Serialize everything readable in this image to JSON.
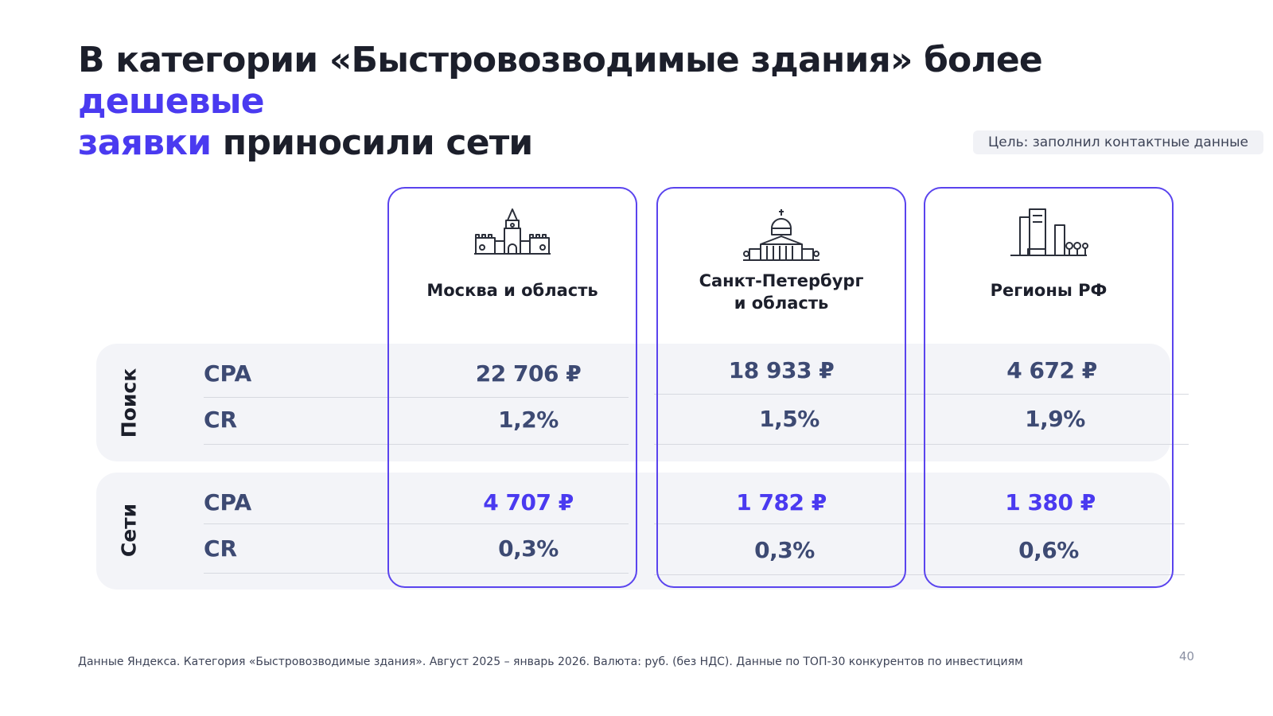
{
  "title": {
    "part1": "В категории «Быстровозводимые здания» более ",
    "accent1": "дешевые",
    "accent2": "заявки",
    "part2": " приносили сети"
  },
  "goal_badge": "Цель: заполнил контактные данные",
  "row_groups": [
    {
      "label": "Поиск",
      "metrics": [
        "CPA",
        "CR"
      ]
    },
    {
      "label": "Сети",
      "metrics": [
        "CPA",
        "CR"
      ]
    }
  ],
  "columns": [
    {
      "title_line1": "Москва и область",
      "title_line2": "",
      "icon": "kremlin-icon",
      "search_cpa": "22 706 ₽",
      "search_cr": "1,2%",
      "networks_cpa": "4 707 ₽",
      "networks_cr": "0,3%"
    },
    {
      "title_line1": "Санкт-Петербург",
      "title_line2": "и область",
      "icon": "cathedral-icon",
      "search_cpa": "18 933 ₽",
      "search_cr": "1,5%",
      "networks_cpa": "1 782 ₽",
      "networks_cr": "0,3%"
    },
    {
      "title_line1": "Регионы РФ",
      "title_line2": "",
      "icon": "city-buildings-icon",
      "search_cpa": "4 672 ₽",
      "search_cr": "1,9%",
      "networks_cpa": "1 380 ₽",
      "networks_cr": "0,6%"
    }
  ],
  "colors": {
    "accent": "#4a3af0",
    "border": "#5a44ee",
    "band": "#f3f4f8",
    "metric_text": "#3d4a73"
  },
  "footer": "Данные Яндекса. Категория «Быстровозводимые здания». Август 2025 – январь 2026. Валюта: руб. (без НДС). Данные по ТОП-30 конкурентов по инвестициям",
  "page_number": "40"
}
